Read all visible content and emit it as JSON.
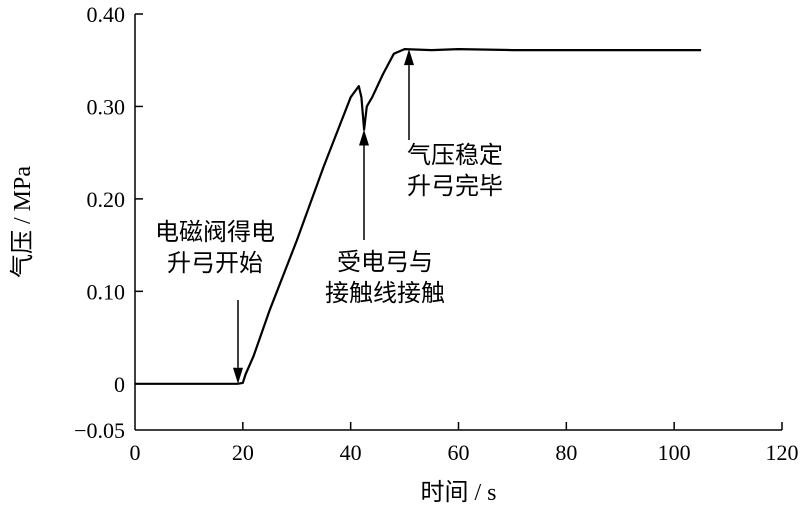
{
  "chart_data": {
    "type": "line",
    "title": "",
    "xlabel": "时间 / s",
    "ylabel": "气压 / MPa",
    "xlim": [
      0,
      120
    ],
    "ylim": [
      -0.05,
      0.4
    ],
    "xticks": [
      0,
      20,
      40,
      60,
      80,
      100,
      120
    ],
    "yticks": [
      -0.05,
      0,
      0.1,
      0.2,
      0.3,
      0.4
    ],
    "ytick_labels": [
      "−0.05",
      "0",
      "0.10",
      "0.20",
      "0.30",
      "0.40"
    ],
    "grid": false,
    "legend": "none",
    "series": [
      {
        "color": "#000000",
        "x": [
          0,
          5,
          10,
          15,
          19,
          20,
          20.5,
          22,
          25,
          30,
          35,
          40,
          41.5,
          42,
          42.5,
          43,
          44,
          46,
          48,
          50,
          55,
          60,
          70,
          80,
          90,
          100,
          105
        ],
        "y": [
          0,
          0,
          0,
          0,
          0,
          0.001,
          0.01,
          0.03,
          0.08,
          0.155,
          0.235,
          0.31,
          0.322,
          0.31,
          0.275,
          0.3,
          0.31,
          0.335,
          0.357,
          0.362,
          0.361,
          0.362,
          0.361,
          0.361,
          0.361,
          0.361,
          0.361
        ]
      }
    ],
    "annotations": [
      {
        "lines": [
          "电磁阀得电",
          "升弓开始"
        ],
        "x": 19,
        "y": 0
      },
      {
        "lines": [
          "受电弓与",
          "接触线接触"
        ],
        "x": 42.3,
        "y": 0.275
      },
      {
        "lines": [
          "气压稳定",
          "升弓完毕"
        ],
        "x": 50.5,
        "y": 0.362
      }
    ]
  }
}
